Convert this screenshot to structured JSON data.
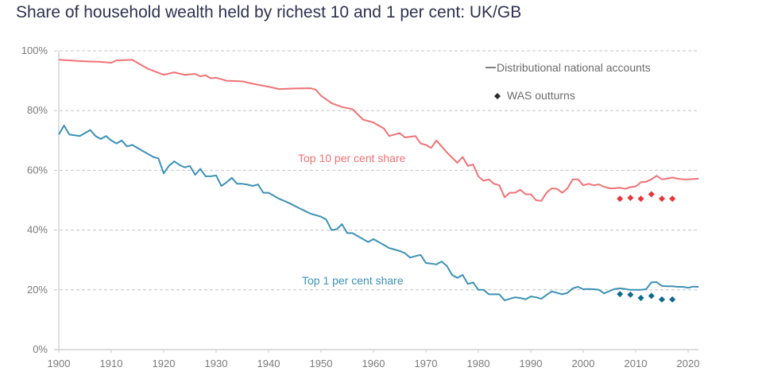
{
  "chart_data": {
    "type": "line",
    "title": "Share of household wealth held by richest 10 and 1 per cent: UK/GB",
    "xlabel": "",
    "ylabel": "",
    "xlim": [
      1900,
      2022
    ],
    "ylim": [
      0,
      100
    ],
    "x_ticks": [
      1900,
      1910,
      1920,
      1930,
      1940,
      1950,
      1960,
      1970,
      1980,
      1990,
      2000,
      2010,
      2020
    ],
    "x_tick_labels": [
      "1900",
      "1910",
      "1920",
      "1930",
      "1940",
      "1950",
      "1960",
      "1970",
      "1980",
      "1990",
      "2000",
      "2010",
      "2020"
    ],
    "y_ticks": [
      0,
      20,
      40,
      60,
      80,
      100
    ],
    "y_tick_labels": [
      "0%",
      "20%",
      "40%",
      "60%",
      "80%",
      "100%"
    ],
    "grid": "horizontal dashed",
    "legend": {
      "position": "top-right",
      "entries": [
        {
          "label": "Distributional national accounts",
          "marker": "line"
        },
        {
          "label": "WAS outturns",
          "marker": "diamond"
        }
      ]
    },
    "colors": {
      "top10": "#f07275",
      "top1": "#3b91b5",
      "top10_was": "#e8343a",
      "top1_was": "#0f6a8e",
      "title": "#2e3250",
      "axis": "#c8c8c8",
      "grid": "#c4c4c4",
      "legend_marker": "#2a2a2a"
    },
    "annotations": [
      {
        "text": "Top 10 per cent share",
        "series": "top10",
        "x": 1955,
        "y": 64
      },
      {
        "text": "Top 1 per cent share",
        "series": "top1",
        "x": 1962,
        "y": 23
      }
    ],
    "series": [
      {
        "name": "Top 10 per cent share",
        "key": "top10",
        "type": "line",
        "x": [
          1900,
          1902,
          1905,
          1908,
          1910,
          1911,
          1914,
          1917,
          1920,
          1922,
          1924,
          1926,
          1927,
          1928,
          1929,
          1930,
          1932,
          1935,
          1937,
          1940,
          1942,
          1945,
          1948,
          1949,
          1950,
          1952,
          1954,
          1956,
          1958,
          1960,
          1962,
          1963,
          1965,
          1966,
          1968,
          1969,
          1970,
          1971,
          1972,
          1974,
          1976,
          1977,
          1978,
          1979,
          1980,
          1981,
          1982,
          1983,
          1984,
          1985,
          1986,
          1987,
          1988,
          1989,
          1990,
          1991,
          1992,
          1993,
          1994,
          1995,
          1996,
          1997,
          1998,
          1999,
          2000,
          2001,
          2002,
          2003,
          2004,
          2005,
          2006,
          2007,
          2008,
          2009,
          2010,
          2011,
          2012,
          2013,
          2014,
          2015,
          2016,
          2017,
          2018,
          2019,
          2020,
          2022
        ],
        "y": [
          97,
          96.8,
          96.5,
          96.3,
          96,
          96.8,
          97,
          94,
          92,
          92.8,
          92,
          92.3,
          91.5,
          91.8,
          90.8,
          91,
          90,
          89.8,
          89,
          88,
          87.2,
          87.4,
          87.5,
          87,
          85,
          82.5,
          81.2,
          80.5,
          77,
          76,
          74,
          71.5,
          72.5,
          71,
          71.5,
          69,
          68.5,
          67.5,
          70,
          66,
          62.5,
          64.5,
          61.5,
          62,
          58,
          56.5,
          57,
          55.5,
          55,
          51,
          52.5,
          52.5,
          53.5,
          52,
          52,
          50,
          49.8,
          52.5,
          54,
          53.8,
          52.5,
          54,
          57,
          57,
          55,
          55.5,
          55,
          55.3,
          54.5,
          54,
          54,
          54.2,
          53.8,
          54.4,
          54.6,
          56,
          56.2,
          57,
          58.2,
          57,
          57.2,
          57.6,
          57.2,
          57,
          57,
          57.2
        ]
      },
      {
        "name": "Top 1 per cent share",
        "key": "top1",
        "type": "line",
        "x": [
          1900,
          1901,
          1902,
          1904,
          1906,
          1907,
          1908,
          1909,
          1910,
          1911,
          1912,
          1913,
          1914,
          1916,
          1918,
          1919,
          1920,
          1921,
          1922,
          1923,
          1924,
          1925,
          1926,
          1927,
          1928,
          1929,
          1930,
          1931,
          1932,
          1933,
          1934,
          1935,
          1936,
          1937,
          1938,
          1939,
          1940,
          1942,
          1944,
          1946,
          1948,
          1950,
          1951,
          1952,
          1953,
          1954,
          1955,
          1956,
          1957,
          1958,
          1959,
          1960,
          1961,
          1962,
          1963,
          1964,
          1965,
          1966,
          1967,
          1968,
          1969,
          1970,
          1971,
          1972,
          1973,
          1974,
          1975,
          1976,
          1977,
          1978,
          1979,
          1980,
          1981,
          1982,
          1983,
          1984,
          1985,
          1986,
          1987,
          1988,
          1989,
          1990,
          1991,
          1992,
          1993,
          1994,
          1995,
          1996,
          1997,
          1998,
          1999,
          2000,
          2001,
          2002,
          2003,
          2004,
          2005,
          2006,
          2007,
          2008,
          2009,
          2010,
          2011,
          2012,
          2013,
          2014,
          2015,
          2016,
          2017,
          2018,
          2019,
          2020,
          2021,
          2022
        ],
        "y": [
          72,
          75,
          72,
          71.5,
          73.5,
          71.5,
          70.5,
          71.5,
          70,
          69,
          70,
          68,
          68.5,
          66.5,
          64.5,
          64,
          59,
          61.5,
          63,
          61.8,
          61,
          61.5,
          58.5,
          60.5,
          58,
          58,
          58.3,
          54.8,
          56,
          57.5,
          55.5,
          55.5,
          55.2,
          54.8,
          55.3,
          52.5,
          52.5,
          50.5,
          49,
          47.2,
          45.5,
          44.5,
          43.5,
          40,
          40.3,
          42,
          39,
          39,
          38,
          37,
          36,
          37,
          36,
          35,
          34,
          33.5,
          33,
          32.3,
          30.8,
          31.3,
          31.7,
          29,
          28.8,
          28.5,
          29.5,
          28,
          25,
          24,
          25,
          22,
          22.5,
          20,
          20,
          18.5,
          18.5,
          18.5,
          16.5,
          17,
          17.5,
          17.3,
          16.8,
          17.8,
          17.5,
          17,
          18.3,
          19.5,
          19,
          18.5,
          19,
          20.5,
          21,
          20.2,
          20.3,
          20.2,
          20,
          18.8,
          19.6,
          20.3,
          20.5,
          20.3,
          20,
          20,
          20,
          20.2,
          22.5,
          22.6,
          21.3,
          21.2,
          21.2,
          21,
          21,
          20.7,
          21.1,
          21
        ]
      },
      {
        "name": "Top 10 per cent share (WAS outturns)",
        "key": "top10_was",
        "type": "scatter",
        "x": [
          2007,
          2009,
          2011,
          2013,
          2015,
          2017
        ],
        "y": [
          50.5,
          50.8,
          50.5,
          52,
          50.5,
          50.5
        ]
      },
      {
        "name": "Top 1 per cent share (WAS outturns)",
        "key": "top1_was",
        "type": "scatter",
        "x": [
          2007,
          2009,
          2011,
          2013,
          2015,
          2017
        ],
        "y": [
          18.6,
          18.4,
          17.3,
          18,
          16.8,
          16.8
        ]
      }
    ]
  }
}
